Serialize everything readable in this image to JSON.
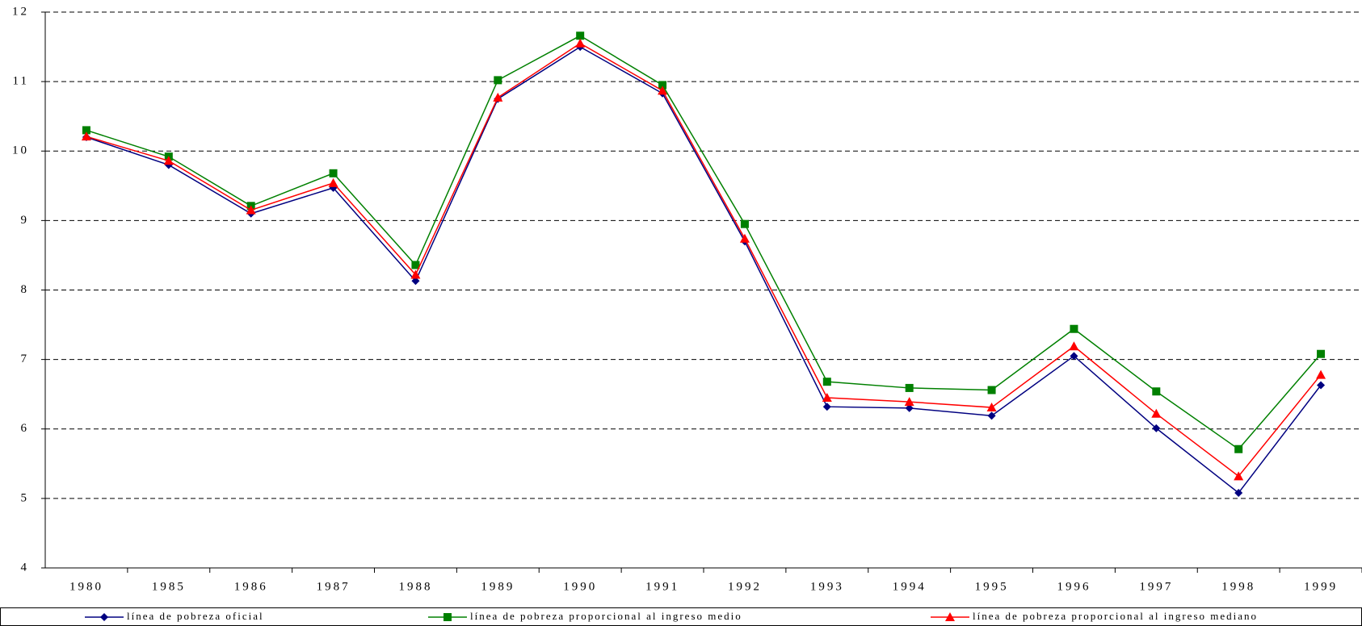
{
  "chart_data": {
    "type": "line",
    "categories": [
      "1980",
      "1985",
      "1986",
      "1987",
      "1988",
      "1989",
      "1990",
      "1991",
      "1992",
      "1993",
      "1994",
      "1995",
      "1996",
      "1997",
      "1998",
      "1999"
    ],
    "series": [
      {
        "name": "línea de pobreza oficial",
        "color": "#000080",
        "marker": "diamond",
        "values": [
          10.2,
          9.8,
          9.1,
          9.47,
          8.13,
          10.75,
          11.5,
          10.83,
          8.7,
          6.32,
          6.3,
          6.19,
          7.05,
          6.01,
          5.08,
          6.63
        ]
      },
      {
        "name": "línea de pobreza proporcional al ingreso medio",
        "color": "#008000",
        "marker": "square",
        "values": [
          10.3,
          9.92,
          9.21,
          9.68,
          8.36,
          11.02,
          11.66,
          10.95,
          8.95,
          6.68,
          6.59,
          6.56,
          7.44,
          6.54,
          5.71,
          7.08
        ]
      },
      {
        "name": "línea de pobreza proporcional al ingreso mediano",
        "color": "#ff0000",
        "marker": "triangle",
        "values": [
          10.21,
          9.86,
          9.15,
          9.54,
          8.22,
          10.77,
          11.55,
          10.87,
          8.74,
          6.45,
          6.39,
          6.31,
          7.19,
          6.22,
          5.32,
          6.78
        ]
      }
    ],
    "ylim": [
      4,
      12
    ],
    "yticks": [
      4,
      5,
      6,
      7,
      8,
      9,
      10,
      11,
      12
    ],
    "grid": true,
    "legend": "bottom"
  }
}
